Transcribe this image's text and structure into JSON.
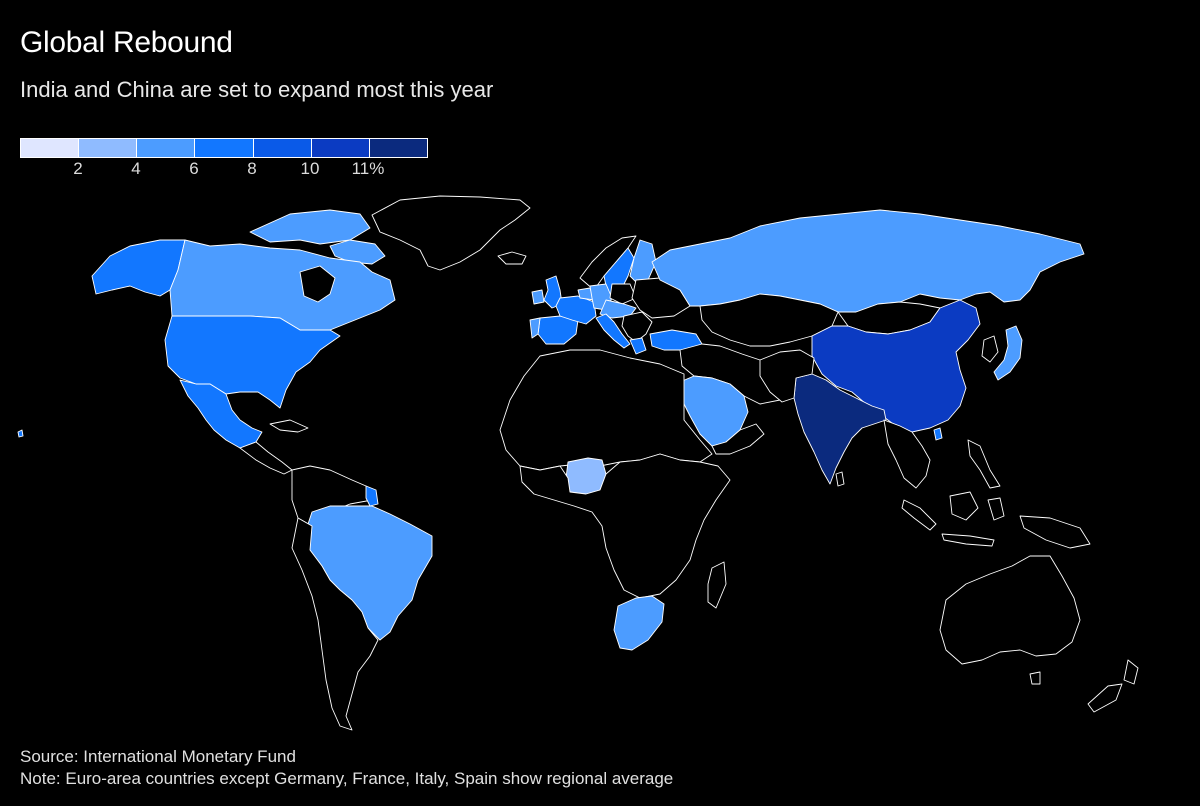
{
  "header": {
    "title": "Global Rebound",
    "subtitle": "India and China are set to expand most this year"
  },
  "legend": {
    "ticks": [
      "2",
      "4",
      "6",
      "8",
      "10",
      "11%"
    ],
    "colors": [
      "#dfe6ff",
      "#8fbbff",
      "#4c9cff",
      "#1277ff",
      "#0a5ae8",
      "#0b3bc2",
      "#0b2a7e"
    ]
  },
  "map": {
    "background": "#000000",
    "border_color": "#ffffff",
    "no_data_color": "#000000",
    "regions": [
      {
        "name": "Canada",
        "class": 2
      },
      {
        "name": "Alaska",
        "class": 3
      },
      {
        "name": "United States",
        "class": 3
      },
      {
        "name": "Mexico",
        "class": 3
      },
      {
        "name": "Brazil",
        "class": 2
      },
      {
        "name": "Guyana",
        "class": 3
      },
      {
        "name": "Russia",
        "class": 2
      },
      {
        "name": "China",
        "class": 5
      },
      {
        "name": "India",
        "class": 6
      },
      {
        "name": "Saudi Arabia",
        "class": 2
      },
      {
        "name": "Nigeria",
        "class": 1
      },
      {
        "name": "South Africa",
        "class": 2
      },
      {
        "name": "Japan",
        "class": 2
      },
      {
        "name": "United Kingdom",
        "class": 3
      },
      {
        "name": "Spain",
        "class": 3
      },
      {
        "name": "France",
        "class": 3
      },
      {
        "name": "Germany",
        "class": 2
      },
      {
        "name": "Italy",
        "class": 3
      },
      {
        "name": "Euro area",
        "class": 2
      },
      {
        "name": "Sweden",
        "class": 3
      },
      {
        "name": "Turkey",
        "class": 3
      }
    ]
  },
  "footer": {
    "source": "Source: International Monetary Fund",
    "note": "Note: Euro-area countries except Germany, France, Italy, Spain show regional average"
  }
}
